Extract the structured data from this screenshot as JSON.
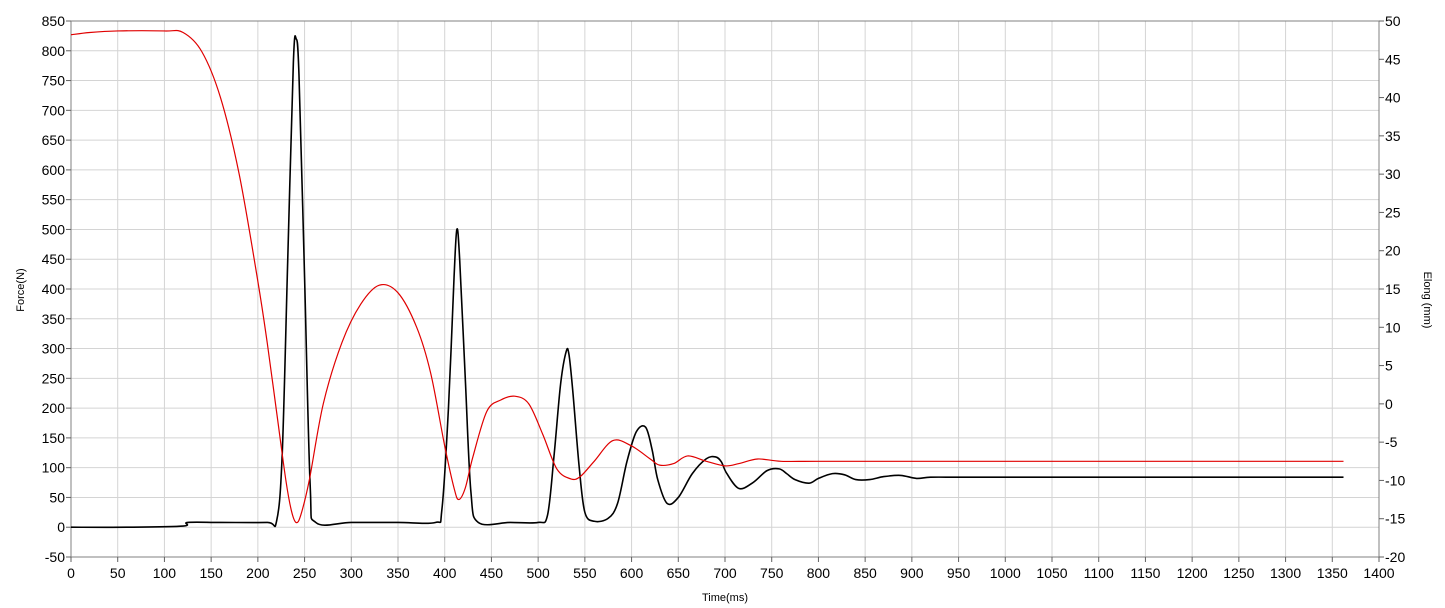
{
  "chart_data": {
    "type": "line",
    "xlabel": "Time(ms)",
    "ylabel_left": "Force(N)",
    "ylabel_right": "Elong (mm)",
    "xlim": [
      0,
      1400
    ],
    "ylim_left": [
      -50,
      850
    ],
    "ylim_right": [
      -20,
      50
    ],
    "x_ticks": [
      "0",
      "50",
      "100",
      "150",
      "200",
      "250",
      "300",
      "350",
      "400",
      "450",
      "500",
      "550",
      "600",
      "650",
      "700",
      "750",
      "800",
      "850",
      "900",
      "950",
      "1000",
      "1050",
      "1100",
      "1150",
      "1200",
      "1250",
      "1300",
      "1350",
      "1400"
    ],
    "y_left_ticks": [
      "-50",
      "0",
      "50",
      "100",
      "150",
      "200",
      "250",
      "300",
      "350",
      "400",
      "450",
      "500",
      "550",
      "600",
      "650",
      "700",
      "750",
      "800",
      "850"
    ],
    "y_right_ticks": [
      "-20",
      "-15",
      "-10",
      "-5",
      "0",
      "5",
      "10",
      "15",
      "20",
      "25",
      "30",
      "35",
      "40",
      "45",
      "50"
    ],
    "grid": true,
    "series": [
      {
        "axis": "left",
        "color": "#000000",
        "x": [
          0,
          60,
          120,
          125,
          160,
          210,
          220,
          226,
          232,
          238,
          241,
          244,
          250,
          256,
          262,
          300,
          350,
          390,
          397,
          404,
          410,
          413,
          416,
          422,
          428,
          436,
          470,
          500,
          510,
          517,
          524,
          530,
          533,
          537,
          544,
          550,
          560,
          575,
          585,
          595,
          605,
          615,
          622,
          628,
          638,
          650,
          665,
          680,
          690,
          696,
          702,
          715,
          730,
          745,
          758,
          766,
          775,
          790,
          800,
          815,
          828,
          840,
          855,
          870,
          888,
          905,
          920,
          950,
          1000,
          1100,
          1200,
          1300,
          1362
        ],
        "y": [
          0,
          0,
          2,
          8,
          8,
          8,
          10,
          120,
          450,
          780,
          820,
          760,
          420,
          70,
          8,
          8,
          8,
          8,
          30,
          200,
          420,
          500,
          450,
          250,
          60,
          8,
          8,
          8,
          20,
          120,
          240,
          295,
          290,
          230,
          100,
          25,
          10,
          15,
          40,
          110,
          160,
          168,
          130,
          80,
          40,
          50,
          90,
          115,
          118,
          110,
          90,
          65,
          75,
          95,
          98,
          90,
          80,
          74,
          82,
          90,
          88,
          80,
          80,
          85,
          87,
          82,
          84,
          84,
          84,
          84,
          84,
          84,
          84
        ]
      },
      {
        "axis": "right",
        "color": "#e00000",
        "x": [
          0,
          20,
          50,
          100,
          120,
          140,
          160,
          180,
          200,
          210,
          220,
          230,
          236,
          241,
          246,
          255,
          270,
          290,
          310,
          330,
          350,
          370,
          385,
          400,
          410,
          415,
          422,
          430,
          445,
          460,
          475,
          490,
          505,
          520,
          535,
          545,
          560,
          580,
          600,
          620,
          630,
          645,
          660,
          680,
          700,
          715,
          735,
          760,
          800,
          900,
          1000,
          1200,
          1362
        ],
        "y": [
          48.2,
          48.5,
          48.7,
          48.7,
          48.5,
          46,
          40,
          30,
          16,
          8,
          -1,
          -10,
          -14,
          -15.5,
          -14.5,
          -10,
          0,
          8,
          13,
          15.5,
          14.5,
          10,
          4,
          -5.5,
          -11,
          -12.5,
          -11,
          -7,
          -1,
          0.5,
          1,
          0,
          -4,
          -8.5,
          -9.8,
          -9.5,
          -7.5,
          -4.8,
          -5.5,
          -7.2,
          -8,
          -7.8,
          -6.8,
          -7.5,
          -8.1,
          -7.8,
          -7.2,
          -7.5,
          -7.5,
          -7.5,
          -7.5,
          -7.5,
          -7.5
        ]
      }
    ]
  }
}
